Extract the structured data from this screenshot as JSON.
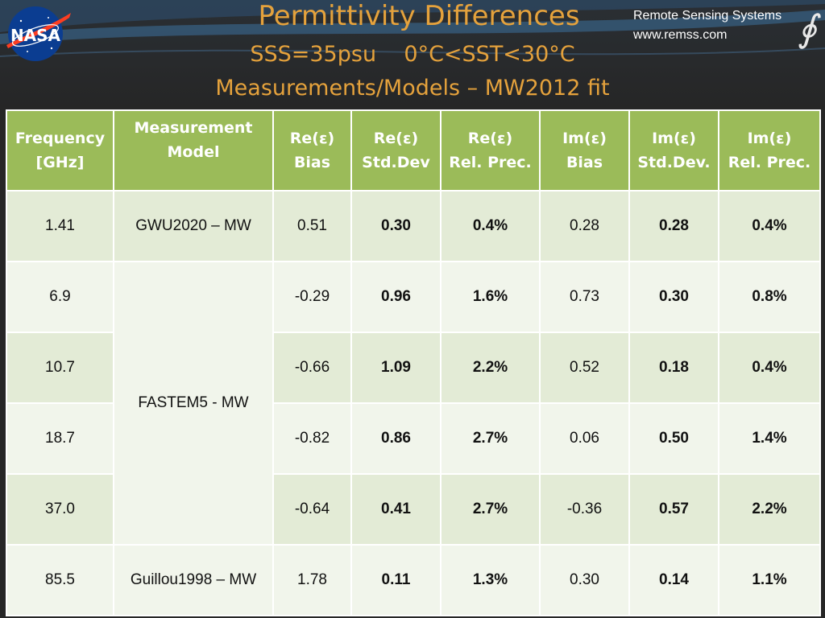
{
  "header": {
    "title": "Permittivity Differences",
    "subtitle": "SSS=35psu    0°C<SST<30°C",
    "subtitle2": "Measurements/Models – MW2012 fit",
    "org_name": "Remote Sensing Systems",
    "org_url": "www.remss.com",
    "logo_text": "NASA",
    "icons": [
      "nasa-logo",
      "remss-logo"
    ]
  },
  "table": {
    "headers": {
      "frequency": [
        "Frequency",
        "[GHz]"
      ],
      "model": [
        "Measurement",
        "Model"
      ],
      "re_bias": [
        "Re(ε)",
        "Bias"
      ],
      "re_std": [
        "Re(ε)",
        "Std.Dev"
      ],
      "re_rel": [
        "Re(ε)",
        "Rel. Prec."
      ],
      "im_bias": [
        "Im(ε)",
        "Bias"
      ],
      "im_std": [
        "Im(ε)",
        "Std.Dev."
      ],
      "im_rel": [
        "Im(ε)",
        "Rel. Prec."
      ]
    },
    "rows": [
      {
        "freq": "1.41",
        "model": "GWU2020 – MW",
        "re_bias": "0.51",
        "re_std": "0.30",
        "re_rel": "0.4%",
        "im_bias": "0.28",
        "im_std": "0.28",
        "im_rel": "0.4%"
      },
      {
        "freq": "6.9",
        "model": "FASTEM5 - MW",
        "re_bias": "-0.29",
        "re_std": "0.96",
        "re_rel": "1.6%",
        "im_bias": "0.73",
        "im_std": "0.30",
        "im_rel": "0.8%"
      },
      {
        "freq": "10.7",
        "model": "FASTEM5 - MW",
        "re_bias": "-0.66",
        "re_std": "1.09",
        "re_rel": "2.2%",
        "im_bias": "0.52",
        "im_std": "0.18",
        "im_rel": "0.4%"
      },
      {
        "freq": "18.7",
        "model": "FASTEM5 - MW",
        "re_bias": "-0.82",
        "re_std": "0.86",
        "re_rel": "2.7%",
        "im_bias": "0.06",
        "im_std": "0.50",
        "im_rel": "1.4%"
      },
      {
        "freq": "37.0",
        "model": "FASTEM5 - MW",
        "re_bias": "-0.64",
        "re_std": "0.41",
        "re_rel": "2.7%",
        "im_bias": "-0.36",
        "im_std": "0.57",
        "im_rel": "2.2%"
      },
      {
        "freq": "85.5",
        "model": "Guillou1998 – MW",
        "re_bias": "1.78",
        "re_std": "0.11",
        "re_rel": "1.3%",
        "im_bias": "0.30",
        "im_std": "0.14",
        "im_rel": "1.1%"
      }
    ]
  },
  "colors": {
    "title": "#e5a23c",
    "header_bg": "#9bbb59",
    "row_dark": "#e3ebd6",
    "row_light": "#f1f5eb",
    "background": "#262626"
  }
}
